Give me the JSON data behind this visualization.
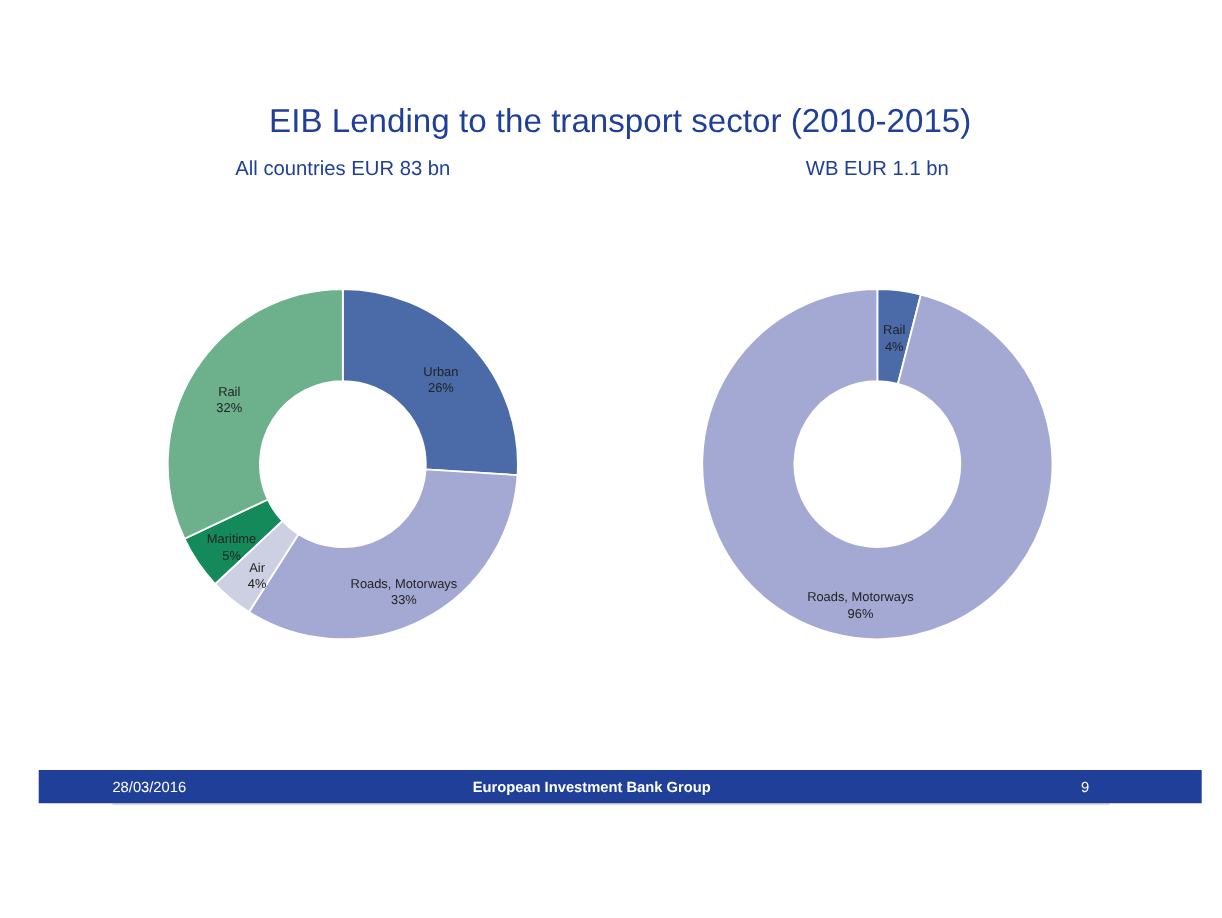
{
  "chart_data": [
    {
      "type": "donut",
      "title": "EIB Lending to the transport sector  (2010-2015)",
      "subtitle": "All countries EUR 83 bn",
      "categories": [
        "Urban",
        "Roads, Motorways",
        "Air",
        "Maritime",
        "Rail"
      ],
      "values": [
        26,
        33,
        4,
        5,
        32
      ],
      "value_labels": [
        "26%",
        "33%",
        "4%",
        "5%",
        "32%"
      ],
      "colors": [
        "#4a6aa8",
        "#a3a9d3",
        "#cdd0e2",
        "#148a5a",
        "#6cb08c"
      ],
      "legend": false,
      "annotations": [
        "28/03/2016",
        "European Investment Bank Group",
        "9"
      ]
    },
    {
      "type": "donut",
      "subtitle": "WB EUR 1.1 bn",
      "categories": [
        "Rail",
        "Roads, Motorways"
      ],
      "values": [
        4,
        96
      ],
      "value_labels": [
        "4%",
        "96%"
      ],
      "colors": [
        "#4a6aa8",
        "#a3a9d3"
      ],
      "legend": false
    }
  ]
}
